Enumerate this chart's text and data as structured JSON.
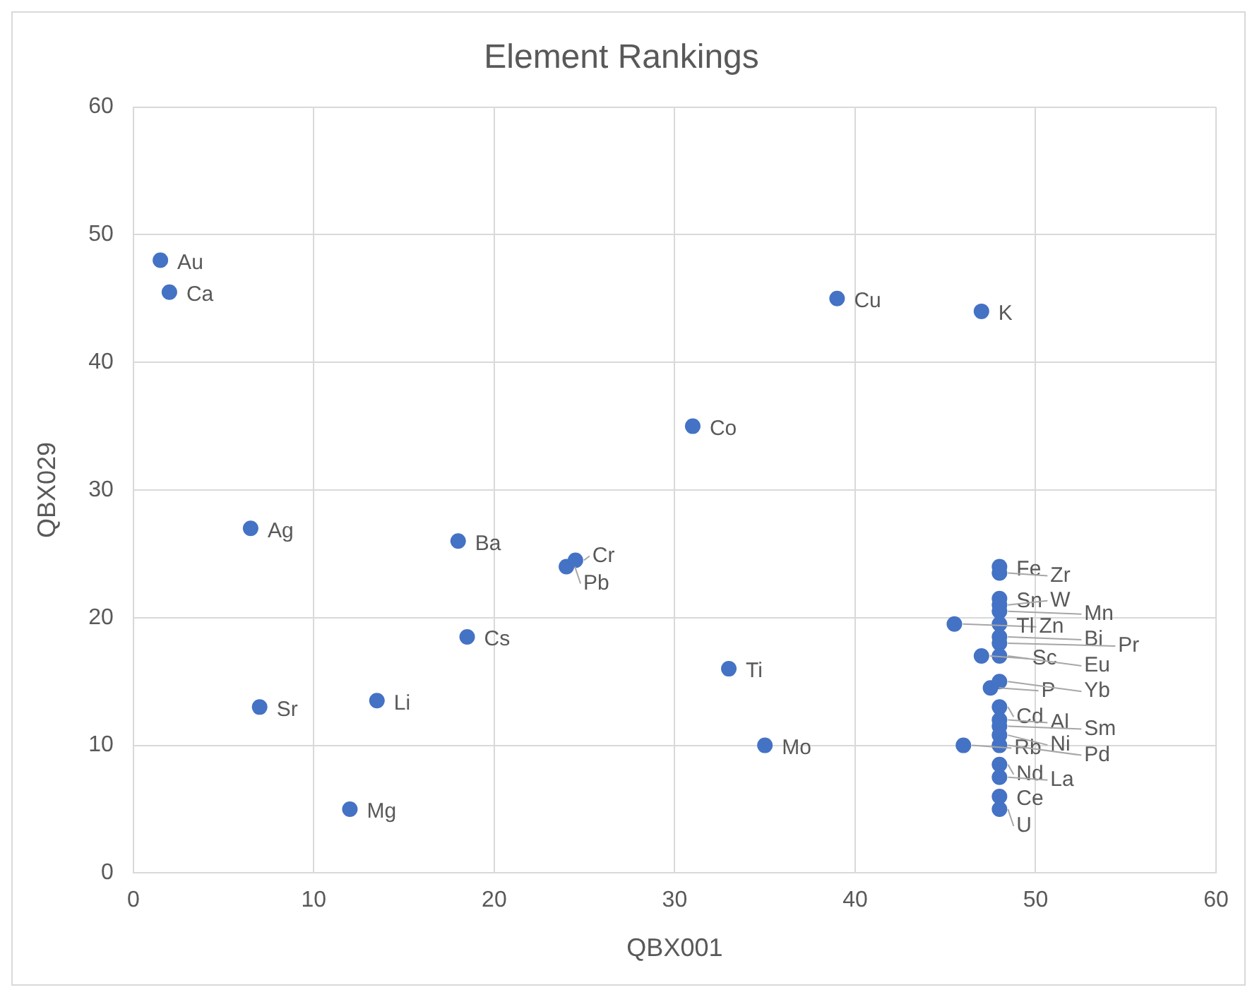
{
  "chart_data": {
    "type": "scatter",
    "title": "Element Rankings",
    "xlabel": "QBX001",
    "ylabel": "QBX029",
    "x": [
      1.5,
      2,
      6.5,
      18,
      24,
      24.5,
      31,
      39,
      47,
      18.5,
      33,
      7,
      13.5,
      35,
      12,
      45.5,
      46,
      47,
      47.5,
      48,
      48,
      48,
      48,
      48,
      48,
      48,
      48,
      48,
      48,
      48,
      48,
      48,
      48,
      48,
      48,
      48,
      48,
      48
    ],
    "series": [
      {
        "color": "#4472c4",
        "values": [
          48,
          45.5,
          27,
          26,
          24,
          24.5,
          35,
          45,
          44,
          18.5,
          16,
          13,
          13.5,
          10,
          5,
          19.5,
          10,
          17,
          14.5,
          24,
          23.5,
          21.5,
          21,
          20.5,
          19.5,
          18.5,
          18,
          17,
          15,
          13,
          12,
          11.5,
          10.8,
          10,
          8.5,
          7.5,
          6,
          5
        ]
      }
    ],
    "annotations": [
      {
        "text": "Au",
        "x": 1.5,
        "y": 48
      },
      {
        "text": "Ca",
        "x": 2,
        "y": 45.5
      },
      {
        "text": "Ag",
        "x": 6.5,
        "y": 27
      },
      {
        "text": "Ba",
        "x": 18,
        "y": 26
      },
      {
        "text": "Pb",
        "x": 24,
        "y": 24
      },
      {
        "text": "Cr",
        "x": 24.5,
        "y": 24.5
      },
      {
        "text": "Co",
        "x": 31,
        "y": 35
      },
      {
        "text": "Cu",
        "x": 39,
        "y": 45
      },
      {
        "text": "K",
        "x": 47,
        "y": 44
      },
      {
        "text": "Cs",
        "x": 18.5,
        "y": 18.5
      },
      {
        "text": "Ti",
        "x": 33,
        "y": 16
      },
      {
        "text": "Sr",
        "x": 7,
        "y": 13
      },
      {
        "text": "Li",
        "x": 13.5,
        "y": 13.5
      },
      {
        "text": "Mo",
        "x": 35,
        "y": 10
      },
      {
        "text": "Mg",
        "x": 12,
        "y": 5
      },
      {
        "text": "Zn",
        "x": 45.5,
        "y": 19.5
      },
      {
        "text": "Rb",
        "x": 46,
        "y": 10
      },
      {
        "text": "Sc",
        "x": 47,
        "y": 17
      },
      {
        "text": "P",
        "x": 47.5,
        "y": 14.5
      },
      {
        "text": "Fe",
        "x": 48,
        "y": 24
      },
      {
        "text": "Zr",
        "x": 48,
        "y": 23.5
      },
      {
        "text": "Sn",
        "x": 48,
        "y": 21.5
      },
      {
        "text": "W",
        "x": 48,
        "y": 21
      },
      {
        "text": "Mn",
        "x": 48,
        "y": 20.5
      },
      {
        "text": "Tl",
        "x": 48,
        "y": 19.5
      },
      {
        "text": "Bi",
        "x": 48,
        "y": 18.5
      },
      {
        "text": "Pr",
        "x": 48,
        "y": 18
      },
      {
        "text": "Eu",
        "x": 48,
        "y": 17
      },
      {
        "text": "Yb",
        "x": 48,
        "y": 15
      },
      {
        "text": "Cd",
        "x": 48,
        "y": 13
      },
      {
        "text": "Al",
        "x": 48,
        "y": 12
      },
      {
        "text": "Sm",
        "x": 48,
        "y": 11.5
      },
      {
        "text": "Ni",
        "x": 48,
        "y": 10.8
      },
      {
        "text": "Pd",
        "x": 48,
        "y": 10
      },
      {
        "text": "Nd",
        "x": 48,
        "y": 8.5
      },
      {
        "text": "La",
        "x": 48,
        "y": 7.5
      },
      {
        "text": "Ce",
        "x": 48,
        "y": 6
      },
      {
        "text": "U",
        "x": 48,
        "y": 5
      }
    ],
    "xlim": [
      0,
      60
    ],
    "ylim": [
      0,
      60
    ],
    "xticks": [
      0,
      10,
      20,
      30,
      40,
      50,
      60
    ],
    "yticks": [
      0,
      10,
      20,
      30,
      40,
      50,
      60
    ],
    "grid": true,
    "legend": false,
    "marker": "circle"
  }
}
